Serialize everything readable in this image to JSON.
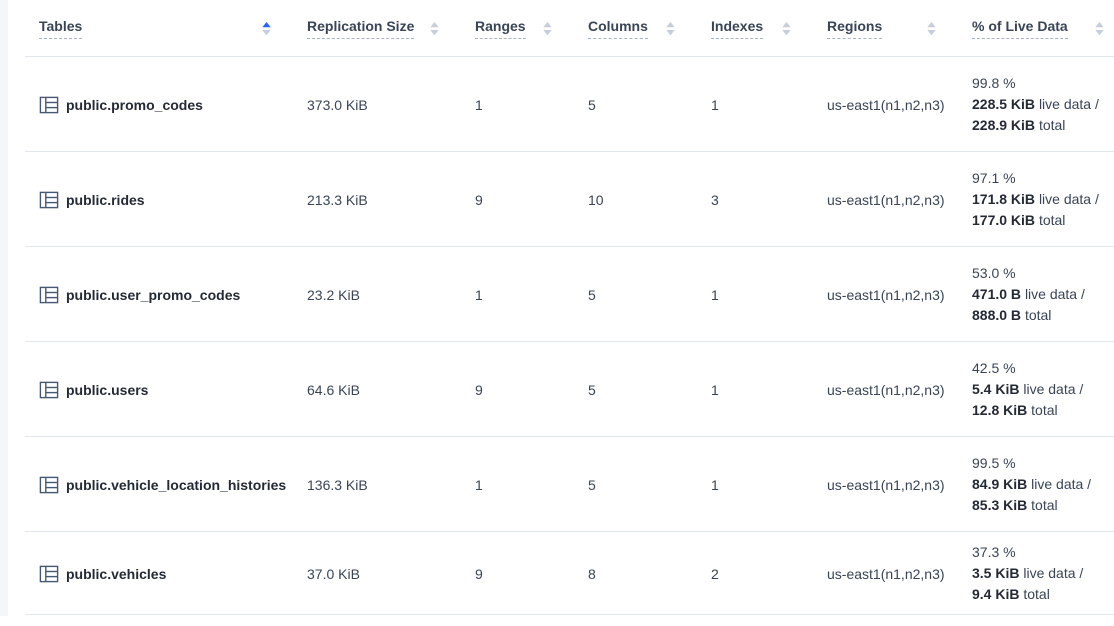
{
  "table": {
    "columns": [
      {
        "label": "Tables",
        "sort": "asc"
      },
      {
        "label": "Replication Size",
        "sort": "none"
      },
      {
        "label": "Ranges",
        "sort": "none"
      },
      {
        "label": "Columns",
        "sort": "none"
      },
      {
        "label": "Indexes",
        "sort": "none"
      },
      {
        "label": "Regions",
        "sort": "none"
      },
      {
        "label": "% of Live Data",
        "sort": "none"
      }
    ],
    "rows": [
      {
        "name": "public.promo_codes",
        "replication_size": "373.0 KiB",
        "ranges": "1",
        "columns": "5",
        "indexes": "1",
        "regions": "us-east1(n1,n2,n3)",
        "live_pct": "99.8 %",
        "live_size": "228.5 KiB",
        "live_label": "live data /",
        "total_size": "228.9 KiB",
        "total_label": "total"
      },
      {
        "name": "public.rides",
        "replication_size": "213.3 KiB",
        "ranges": "9",
        "columns": "10",
        "indexes": "3",
        "regions": "us-east1(n1,n2,n3)",
        "live_pct": "97.1 %",
        "live_size": "171.8 KiB",
        "live_label": "live data /",
        "total_size": "177.0 KiB",
        "total_label": "total"
      },
      {
        "name": "public.user_promo_codes",
        "replication_size": "23.2 KiB",
        "ranges": "1",
        "columns": "5",
        "indexes": "1",
        "regions": "us-east1(n1,n2,n3)",
        "live_pct": "53.0 %",
        "live_size": "471.0 B",
        "live_label": "live data /",
        "total_size": "888.0 B",
        "total_label": "total"
      },
      {
        "name": "public.users",
        "replication_size": "64.6 KiB",
        "ranges": "9",
        "columns": "5",
        "indexes": "1",
        "regions": "us-east1(n1,n2,n3)",
        "live_pct": "42.5 %",
        "live_size": "5.4 KiB",
        "live_label": "live data /",
        "total_size": "12.8 KiB",
        "total_label": "total"
      },
      {
        "name": "public.vehicle_location_histories",
        "replication_size": "136.3 KiB",
        "ranges": "1",
        "columns": "5",
        "indexes": "1",
        "regions": "us-east1(n1,n2,n3)",
        "live_pct": "99.5 %",
        "live_size": "84.9 KiB",
        "live_label": "live data /",
        "total_size": "85.3 KiB",
        "total_label": "total"
      },
      {
        "name": "public.vehicles",
        "replication_size": "37.0 KiB",
        "ranges": "9",
        "columns": "8",
        "indexes": "2",
        "regions": "us-east1(n1,n2,n3)",
        "live_pct": "37.3 %",
        "live_size": "3.5 KiB",
        "live_label": "live data /",
        "total_size": "9.4 KiB",
        "total_label": "total"
      }
    ]
  },
  "colors": {
    "accent_blue": "#2962ff",
    "sort_inactive": "#c5cedb",
    "header_text": "#394455",
    "table_name": "#242a35",
    "cell_text": "#394455",
    "row_divider": "#e0e7ef",
    "dash": "#a6b3c4",
    "icon": "#475872",
    "page_strip": "#f4f6fa"
  }
}
